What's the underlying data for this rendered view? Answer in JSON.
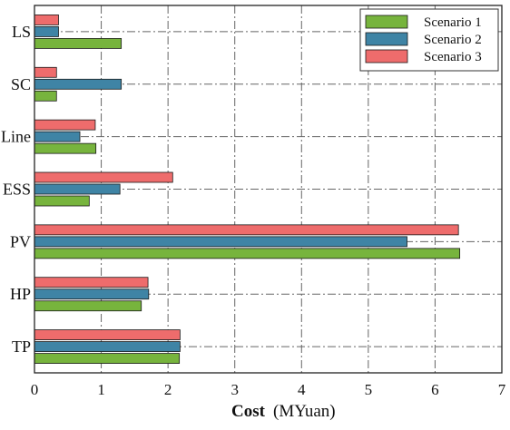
{
  "chart_data": {
    "type": "bar",
    "orientation": "horizontal",
    "categories": [
      "TP",
      "HP",
      "PV",
      "ESS",
      "Line",
      "SC",
      "LS"
    ],
    "series": [
      {
        "name": "Scenario 1",
        "color": "#77b43d",
        "values": [
          2.17,
          1.6,
          6.37,
          0.82,
          0.92,
          0.33,
          1.3
        ]
      },
      {
        "name": "Scenario 2",
        "color": "#3f84a5",
        "values": [
          2.18,
          1.71,
          5.58,
          1.28,
          0.68,
          1.3,
          0.36
        ]
      },
      {
        "name": "Scenario 3",
        "color": "#ee6c6c",
        "values": [
          2.18,
          1.7,
          6.35,
          2.07,
          0.91,
          0.33,
          0.36
        ]
      }
    ],
    "xlim": [
      0,
      7
    ],
    "xticks": [
      "0",
      "1",
      "2",
      "3",
      "4",
      "5",
      "6",
      "7"
    ],
    "xlabel": "Cost",
    "xlabel_unit": "(MYuan)",
    "grid": true,
    "legend_position": "top-right"
  }
}
